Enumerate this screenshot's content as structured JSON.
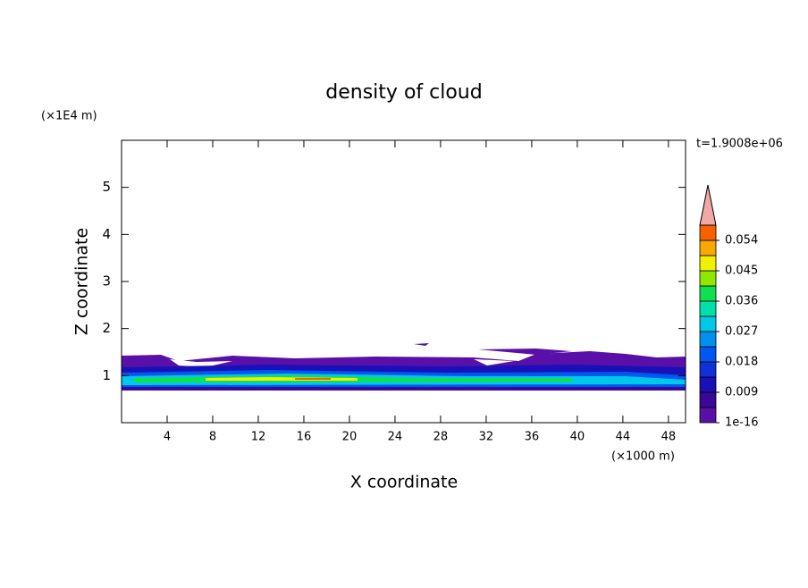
{
  "chart_data": {
    "type": "contour",
    "title": "density of cloud",
    "x_label": "X coordinate",
    "y_label": "Z coordinate",
    "x_unit": "(×1000 m)",
    "y_unit": "(×1E4 m)",
    "annotation": "t=1.9008e+06",
    "xlim": [
      0,
      49.5
    ],
    "xticks": [
      4,
      8,
      12,
      16,
      20,
      24,
      28,
      32,
      36,
      40,
      44,
      48
    ],
    "ylim": [
      0,
      6
    ],
    "yticks": [
      1,
      2,
      3,
      4,
      5
    ],
    "colorbar": {
      "levels": [
        0,
        0.0045,
        0.009,
        0.0135,
        0.018,
        0.0225,
        0.027,
        0.0315,
        0.036,
        0.0405,
        0.045,
        0.0495,
        0.054,
        0.0585
      ],
      "colors": [
        "#5a10a8",
        "#3a0898",
        "#1a10b8",
        "#1030d8",
        "#0058f0",
        "#0090f0",
        "#00c8e8",
        "#00e0a8",
        "#10e050",
        "#90e800",
        "#f0f000",
        "#f8a800",
        "#f86000"
      ],
      "extend_color": "#f0a8a8",
      "ticks": [
        1e-16,
        0.009,
        0.018,
        0.027,
        0.036,
        0.045,
        0.054
      ]
    }
  }
}
